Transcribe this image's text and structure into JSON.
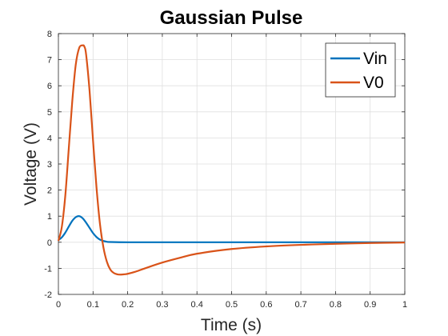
{
  "chart_data": {
    "type": "line",
    "title": "Gaussian Pulse",
    "xlabel": "Time (s)",
    "ylabel": "Voltage (V)",
    "xlim": [
      0,
      1
    ],
    "ylim": [
      -2,
      8
    ],
    "xticks": [
      0,
      0.1,
      0.2,
      0.3,
      0.4,
      0.5,
      0.6,
      0.7,
      0.8,
      0.9,
      1
    ],
    "yticks": [
      -2,
      -1,
      0,
      1,
      2,
      3,
      4,
      5,
      6,
      7,
      8
    ],
    "xtick_labels": [
      "0",
      "0.1",
      "0.2",
      "0.3",
      "0.4",
      "0.5",
      "0.6",
      "0.7",
      "0.8",
      "0.9",
      "1"
    ],
    "ytick_labels": [
      "-2",
      "-1",
      "0",
      "1",
      "2",
      "3",
      "4",
      "5",
      "6",
      "7",
      "8"
    ],
    "grid": true,
    "legend_position": "top-right",
    "series": [
      {
        "name": "Vin",
        "color": "#0072BD",
        "x": [
          0,
          0.01,
          0.02,
          0.03,
          0.04,
          0.05,
          0.06,
          0.07,
          0.08,
          0.09,
          0.1,
          0.11,
          0.12,
          0.13,
          0.14,
          0.15,
          0.2,
          0.3,
          0.4,
          0.5,
          0.6,
          0.7,
          0.8,
          0.9,
          1.0
        ],
        "y": [
          0.08,
          0.19,
          0.37,
          0.6,
          0.82,
          0.96,
          1.0,
          0.92,
          0.75,
          0.55,
          0.35,
          0.2,
          0.1,
          0.05,
          0.02,
          0.01,
          0,
          0,
          0,
          0,
          0,
          0,
          0,
          0,
          0
        ]
      },
      {
        "name": "V0",
        "color": "#D95319",
        "x": [
          0,
          0.01,
          0.02,
          0.03,
          0.04,
          0.05,
          0.06,
          0.07,
          0.075,
          0.08,
          0.09,
          0.1,
          0.11,
          0.12,
          0.13,
          0.14,
          0.15,
          0.16,
          0.17,
          0.18,
          0.19,
          0.2,
          0.22,
          0.25,
          0.3,
          0.35,
          0.4,
          0.5,
          0.6,
          0.7,
          0.8,
          0.9,
          1.0
        ],
        "y": [
          0.05,
          0.6,
          1.8,
          3.6,
          5.4,
          6.8,
          7.45,
          7.55,
          7.5,
          7.2,
          5.8,
          3.9,
          2.1,
          0.7,
          -0.2,
          -0.75,
          -1.05,
          -1.18,
          -1.23,
          -1.24,
          -1.23,
          -1.21,
          -1.14,
          -1.0,
          -0.78,
          -0.6,
          -0.44,
          -0.26,
          -0.16,
          -0.1,
          -0.06,
          -0.03,
          -0.01
        ]
      }
    ]
  }
}
